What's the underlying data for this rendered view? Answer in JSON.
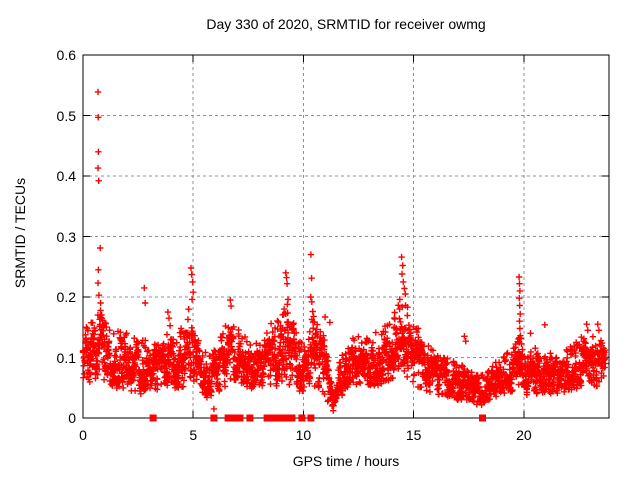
{
  "chart_data": {
    "type": "scatter",
    "title": "Day 330 of 2020, SRMTID for receiver owmg",
    "xlabel": "GPS time / hours",
    "ylabel": "SRMTID / TECUs",
    "xlim": [
      0,
      23.86
    ],
    "ylim": [
      0,
      0.6
    ],
    "xticks": [
      0,
      5,
      10,
      15,
      20
    ],
    "yticks": [
      0,
      0.1,
      0.2,
      0.3,
      0.4,
      0.5,
      0.6
    ],
    "ytick_labels": [
      "0",
      "0.1",
      "0.2",
      "0.3",
      "0.4",
      "0.5",
      "0.6"
    ],
    "xtick_labels": [
      "0",
      "5",
      "10",
      "15",
      "20"
    ],
    "grid": true,
    "colors": {
      "marker": "#ff0000",
      "grid": "#909090",
      "axis": "#000000",
      "background": "#ffffff"
    },
    "series": [
      {
        "name": "srmtid-points",
        "marker": "plus",
        "color": "#ff0000",
        "points_per_hour": 135,
        "band": [
          [
            0.0,
            0.05,
            0.16
          ],
          [
            0.4,
            0.06,
            0.17
          ],
          [
            0.7,
            0.07,
            0.19
          ],
          [
            1.0,
            0.06,
            0.16
          ],
          [
            1.5,
            0.05,
            0.145
          ],
          [
            2.0,
            0.045,
            0.14
          ],
          [
            2.5,
            0.04,
            0.145
          ],
          [
            3.0,
            0.04,
            0.12
          ],
          [
            3.5,
            0.05,
            0.125
          ],
          [
            3.9,
            0.05,
            0.16
          ],
          [
            4.3,
            0.05,
            0.14
          ],
          [
            4.9,
            0.055,
            0.19
          ],
          [
            5.3,
            0.04,
            0.12
          ],
          [
            5.8,
            0.03,
            0.11
          ],
          [
            6.2,
            0.045,
            0.13
          ],
          [
            6.7,
            0.06,
            0.18
          ],
          [
            7.1,
            0.05,
            0.15
          ],
          [
            7.5,
            0.04,
            0.125
          ],
          [
            8.0,
            0.05,
            0.135
          ],
          [
            8.5,
            0.055,
            0.16
          ],
          [
            9.0,
            0.05,
            0.17
          ],
          [
            9.3,
            0.055,
            0.2
          ],
          [
            9.6,
            0.05,
            0.15
          ],
          [
            10.0,
            0.035,
            0.12
          ],
          [
            10.4,
            0.04,
            0.165
          ],
          [
            10.9,
            0.04,
            0.155
          ],
          [
            11.25,
            0.015,
            0.06
          ],
          [
            11.6,
            0.03,
            0.09
          ],
          [
            12.0,
            0.05,
            0.125
          ],
          [
            12.5,
            0.055,
            0.14
          ],
          [
            13.0,
            0.05,
            0.13
          ],
          [
            13.5,
            0.055,
            0.15
          ],
          [
            14.0,
            0.065,
            0.17
          ],
          [
            14.5,
            0.075,
            0.21
          ],
          [
            14.8,
            0.065,
            0.185
          ],
          [
            15.2,
            0.05,
            0.15
          ],
          [
            15.6,
            0.045,
            0.125
          ],
          [
            16.0,
            0.04,
            0.11
          ],
          [
            16.5,
            0.03,
            0.1
          ],
          [
            17.0,
            0.03,
            0.095
          ],
          [
            17.5,
            0.025,
            0.085
          ],
          [
            18.0,
            0.02,
            0.07
          ],
          [
            18.5,
            0.03,
            0.09
          ],
          [
            19.0,
            0.04,
            0.1
          ],
          [
            19.5,
            0.045,
            0.115
          ],
          [
            19.8,
            0.05,
            0.14
          ],
          [
            20.1,
            0.035,
            0.1
          ],
          [
            20.5,
            0.04,
            0.12
          ],
          [
            21.0,
            0.04,
            0.105
          ],
          [
            21.5,
            0.04,
            0.115
          ],
          [
            22.0,
            0.045,
            0.115
          ],
          [
            22.5,
            0.05,
            0.13
          ],
          [
            22.9,
            0.055,
            0.145
          ],
          [
            23.3,
            0.05,
            0.13
          ],
          [
            23.7,
            0.06,
            0.14
          ]
        ],
        "outliers": [
          [
            0.68,
            0.539
          ],
          [
            0.69,
            0.497
          ],
          [
            0.7,
            0.44
          ],
          [
            0.68,
            0.413
          ],
          [
            0.71,
            0.392
          ],
          [
            0.78,
            0.281
          ],
          [
            0.7,
            0.245
          ],
          [
            0.68,
            0.223
          ],
          [
            0.72,
            0.203
          ],
          [
            0.8,
            0.19
          ],
          [
            2.78,
            0.215
          ],
          [
            2.82,
            0.19
          ],
          [
            3.85,
            0.175
          ],
          [
            3.9,
            0.165
          ],
          [
            4.9,
            0.248
          ],
          [
            4.93,
            0.237
          ],
          [
            4.97,
            0.225
          ],
          [
            5.0,
            0.208
          ],
          [
            4.95,
            0.196
          ],
          [
            5.94,
            0.015
          ],
          [
            6.68,
            0.195
          ],
          [
            6.72,
            0.185
          ],
          [
            9.2,
            0.24
          ],
          [
            9.23,
            0.232
          ],
          [
            9.26,
            0.222
          ],
          [
            9.3,
            0.196
          ],
          [
            9.27,
            0.188
          ],
          [
            10.34,
            0.27
          ],
          [
            10.37,
            0.231
          ],
          [
            10.33,
            0.2
          ],
          [
            10.38,
            0.192
          ],
          [
            10.42,
            0.176
          ],
          [
            10.46,
            0.168
          ],
          [
            10.98,
            0.167
          ],
          [
            11.2,
            0.158
          ],
          [
            11.3,
            0.02
          ],
          [
            11.35,
            0.012
          ],
          [
            14.45,
            0.266
          ],
          [
            14.5,
            0.252
          ],
          [
            14.47,
            0.238
          ],
          [
            14.53,
            0.225
          ],
          [
            14.58,
            0.214
          ],
          [
            14.62,
            0.205
          ],
          [
            17.3,
            0.135
          ],
          [
            17.36,
            0.127
          ],
          [
            19.78,
            0.233
          ],
          [
            19.8,
            0.222
          ],
          [
            19.82,
            0.21
          ],
          [
            19.79,
            0.198
          ],
          [
            19.81,
            0.186
          ],
          [
            19.83,
            0.172
          ],
          [
            19.8,
            0.16
          ],
          [
            19.82,
            0.148
          ],
          [
            19.84,
            0.136
          ],
          [
            19.79,
            0.125
          ],
          [
            20.3,
            0.14
          ],
          [
            20.95,
            0.154
          ],
          [
            22.85,
            0.155
          ],
          [
            22.9,
            0.145
          ],
          [
            23.35,
            0.155
          ],
          [
            23.4,
            0.145
          ]
        ]
      },
      {
        "name": "zero-flags",
        "marker": "filled-square",
        "color": "#ff0000",
        "y": 0,
        "x": [
          3.18,
          5.94,
          6.58,
          6.85,
          7.12,
          7.57,
          8.35,
          8.5,
          8.72,
          8.85,
          8.98,
          9.1,
          9.22,
          9.48,
          9.93,
          10.34,
          18.12
        ]
      }
    ]
  }
}
